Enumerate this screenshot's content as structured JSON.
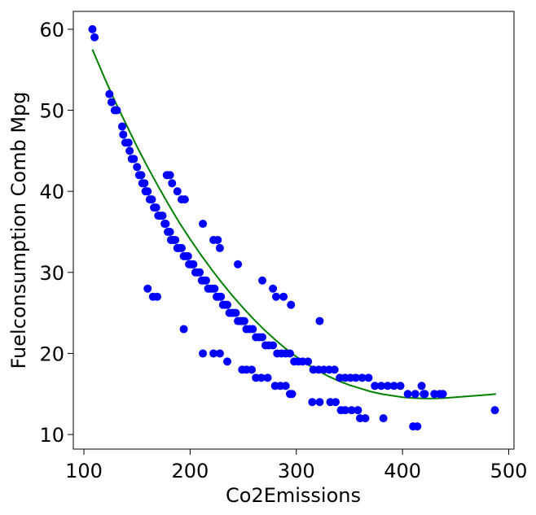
{
  "chart_data": {
    "type": "scatter",
    "title": "",
    "xlabel": "Co2Emissions",
    "ylabel": "Fuelconsumption Comb Mpg",
    "xlim": [
      90,
      505
    ],
    "ylim": [
      8.2,
      62.2
    ],
    "xticks": [
      100,
      200,
      300,
      400,
      500
    ],
    "yticks": [
      10,
      20,
      30,
      40,
      50,
      60
    ],
    "grid": false,
    "legend": "none",
    "colors": {
      "points": "#0000ff",
      "fit": "#008000"
    },
    "series": [
      {
        "kind": "scatter",
        "points": [
          [
            108,
            60
          ],
          [
            110,
            59
          ],
          [
            124,
            52
          ],
          [
            126,
            51
          ],
          [
            129,
            50
          ],
          [
            131,
            50
          ],
          [
            136,
            48
          ],
          [
            137,
            47
          ],
          [
            139,
            46
          ],
          [
            142,
            46
          ],
          [
            143,
            45
          ],
          [
            145,
            44
          ],
          [
            147,
            44
          ],
          [
            150,
            43
          ],
          [
            152,
            42
          ],
          [
            154,
            42
          ],
          [
            155,
            41
          ],
          [
            157,
            41
          ],
          [
            158,
            40
          ],
          [
            160,
            40
          ],
          [
            162,
            39
          ],
          [
            164,
            39
          ],
          [
            166,
            38
          ],
          [
            168,
            38
          ],
          [
            170,
            37
          ],
          [
            172,
            37
          ],
          [
            174,
            37
          ],
          [
            176,
            36
          ],
          [
            177,
            36
          ],
          [
            179,
            35
          ],
          [
            181,
            35
          ],
          [
            182,
            34
          ],
          [
            184,
            34
          ],
          [
            186,
            34
          ],
          [
            188,
            33
          ],
          [
            190,
            33
          ],
          [
            192,
            33
          ],
          [
            194,
            32
          ],
          [
            196,
            32
          ],
          [
            198,
            32
          ],
          [
            199,
            31
          ],
          [
            201,
            31
          ],
          [
            203,
            31
          ],
          [
            205,
            30
          ],
          [
            207,
            30
          ],
          [
            209,
            30
          ],
          [
            211,
            29
          ],
          [
            213,
            29
          ],
          [
            215,
            29
          ],
          [
            217,
            28
          ],
          [
            219,
            28
          ],
          [
            221,
            28
          ],
          [
            223,
            28
          ],
          [
            225,
            27
          ],
          [
            227,
            27
          ],
          [
            229,
            27
          ],
          [
            231,
            26
          ],
          [
            233,
            26
          ],
          [
            235,
            26
          ],
          [
            237,
            25
          ],
          [
            239,
            25
          ],
          [
            241,
            25
          ],
          [
            243,
            25
          ],
          [
            245,
            24
          ],
          [
            247,
            24
          ],
          [
            249,
            24
          ],
          [
            251,
            24
          ],
          [
            253,
            23
          ],
          [
            256,
            23
          ],
          [
            259,
            23
          ],
          [
            262,
            22
          ],
          [
            265,
            22
          ],
          [
            268,
            22
          ],
          [
            271,
            21
          ],
          [
            274,
            21
          ],
          [
            278,
            21
          ],
          [
            282,
            20
          ],
          [
            286,
            20
          ],
          [
            290,
            20
          ],
          [
            294,
            20
          ],
          [
            298,
            19
          ],
          [
            302,
            19
          ],
          [
            306,
            19
          ],
          [
            311,
            19
          ],
          [
            316,
            18
          ],
          [
            321,
            18
          ],
          [
            326,
            18
          ],
          [
            331,
            18
          ],
          [
            336,
            18
          ],
          [
            341,
            17
          ],
          [
            346,
            17
          ],
          [
            351,
            17
          ],
          [
            356,
            17
          ],
          [
            362,
            17
          ],
          [
            368,
            17
          ],
          [
            374,
            16
          ],
          [
            380,
            16
          ],
          [
            386,
            16
          ],
          [
            392,
            16
          ],
          [
            398,
            16
          ],
          [
            405,
            15
          ],
          [
            412,
            15
          ],
          [
            420,
            15
          ],
          [
            430,
            15
          ],
          [
            435,
            15
          ],
          [
            438,
            15
          ],
          [
            178,
            42
          ],
          [
            181,
            42
          ],
          [
            183,
            41
          ],
          [
            188,
            40
          ],
          [
            192,
            39
          ],
          [
            195,
            39
          ],
          [
            212,
            36
          ],
          [
            222,
            34
          ],
          [
            226,
            34
          ],
          [
            228,
            33
          ],
          [
            245,
            31
          ],
          [
            268,
            29
          ],
          [
            278,
            28
          ],
          [
            281,
            27
          ],
          [
            288,
            27
          ],
          [
            295,
            26
          ],
          [
            160,
            28
          ],
          [
            165,
            27
          ],
          [
            169,
            27
          ],
          [
            194,
            23
          ],
          [
            212,
            20
          ],
          [
            322,
            24
          ],
          [
            222,
            20
          ],
          [
            228,
            20
          ],
          [
            235,
            19
          ],
          [
            249,
            18
          ],
          [
            253,
            18
          ],
          [
            258,
            18
          ],
          [
            262,
            17
          ],
          [
            267,
            17
          ],
          [
            273,
            17
          ],
          [
            280,
            16
          ],
          [
            285,
            16
          ],
          [
            290,
            16
          ],
          [
            294,
            15
          ],
          [
            296,
            15
          ],
          [
            315,
            14
          ],
          [
            322,
            14
          ],
          [
            332,
            14
          ],
          [
            337,
            14
          ],
          [
            342,
            13
          ],
          [
            346,
            13
          ],
          [
            352,
            13
          ],
          [
            358,
            13
          ],
          [
            360,
            12
          ],
          [
            365,
            12
          ],
          [
            382,
            12
          ],
          [
            410,
            11
          ],
          [
            414,
            11
          ],
          [
            418,
            16
          ],
          [
            421,
            15
          ],
          [
            487,
            13
          ]
        ]
      },
      {
        "kind": "line",
        "points": [
          [
            108,
            57.5
          ],
          [
            120,
            53.8
          ],
          [
            130,
            50.9
          ],
          [
            140,
            48.2
          ],
          [
            150,
            45.5
          ],
          [
            160,
            43.0
          ],
          [
            170,
            40.6
          ],
          [
            180,
            38.3
          ],
          [
            190,
            36.1
          ],
          [
            200,
            34.1
          ],
          [
            210,
            32.2
          ],
          [
            220,
            30.4
          ],
          [
            230,
            28.7
          ],
          [
            240,
            27.1
          ],
          [
            250,
            25.6
          ],
          [
            260,
            24.2
          ],
          [
            270,
            22.9
          ],
          [
            280,
            21.7
          ],
          [
            290,
            20.6
          ],
          [
            300,
            19.6
          ],
          [
            310,
            18.7
          ],
          [
            320,
            17.9
          ],
          [
            330,
            17.2
          ],
          [
            340,
            16.6
          ],
          [
            350,
            16.1
          ],
          [
            360,
            15.7
          ],
          [
            370,
            15.3
          ],
          [
            380,
            15.0
          ],
          [
            390,
            14.8
          ],
          [
            400,
            14.6
          ],
          [
            410,
            14.5
          ],
          [
            420,
            14.45
          ],
          [
            430,
            14.45
          ],
          [
            440,
            14.5
          ],
          [
            450,
            14.6
          ],
          [
            460,
            14.7
          ],
          [
            470,
            14.8
          ],
          [
            480,
            14.9
          ],
          [
            488,
            15.0
          ]
        ]
      }
    ]
  }
}
